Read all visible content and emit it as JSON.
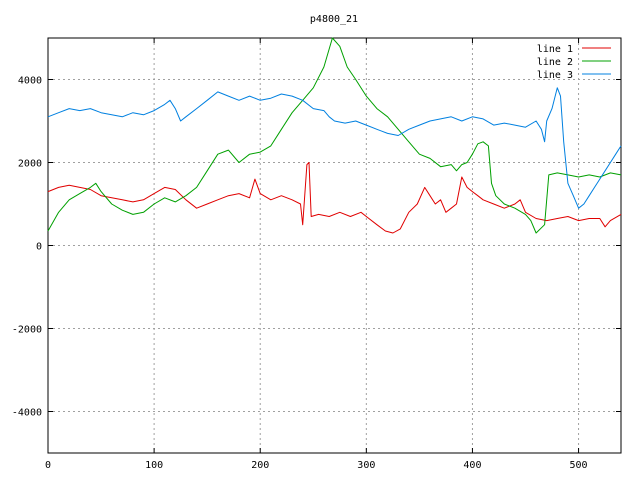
{
  "chart_data": {
    "type": "line",
    "title": "p4800_21",
    "xlabel": "",
    "ylabel": "",
    "xlim": [
      0,
      540
    ],
    "ylim": [
      -5000,
      5000
    ],
    "xticks": [
      0,
      100,
      200,
      300,
      400,
      500
    ],
    "yticks": [
      -4000,
      -2000,
      0,
      2000,
      4000
    ],
    "grid": true,
    "legend_position": "top-right",
    "series": [
      {
        "name": "line 1",
        "color": "#e00000",
        "points": [
          [
            0,
            1300
          ],
          [
            10,
            1400
          ],
          [
            20,
            1450
          ],
          [
            30,
            1400
          ],
          [
            40,
            1350
          ],
          [
            50,
            1200
          ],
          [
            60,
            1150
          ],
          [
            70,
            1100
          ],
          [
            80,
            1050
          ],
          [
            90,
            1100
          ],
          [
            100,
            1250
          ],
          [
            110,
            1400
          ],
          [
            120,
            1350
          ],
          [
            130,
            1100
          ],
          [
            140,
            900
          ],
          [
            150,
            1000
          ],
          [
            160,
            1100
          ],
          [
            170,
            1200
          ],
          [
            180,
            1250
          ],
          [
            190,
            1150
          ],
          [
            195,
            1600
          ],
          [
            200,
            1250
          ],
          [
            210,
            1100
          ],
          [
            220,
            1200
          ],
          [
            230,
            1100
          ],
          [
            238,
            1000
          ],
          [
            240,
            500
          ],
          [
            244,
            1950
          ],
          [
            246,
            2000
          ],
          [
            248,
            700
          ],
          [
            255,
            750
          ],
          [
            265,
            700
          ],
          [
            275,
            800
          ],
          [
            285,
            700
          ],
          [
            295,
            800
          ],
          [
            300,
            700
          ],
          [
            310,
            500
          ],
          [
            318,
            350
          ],
          [
            325,
            300
          ],
          [
            332,
            400
          ],
          [
            340,
            800
          ],
          [
            348,
            1000
          ],
          [
            355,
            1400
          ],
          [
            360,
            1200
          ],
          [
            365,
            1000
          ],
          [
            370,
            1100
          ],
          [
            375,
            800
          ],
          [
            380,
            900
          ],
          [
            385,
            1000
          ],
          [
            390,
            1650
          ],
          [
            395,
            1400
          ],
          [
            400,
            1300
          ],
          [
            405,
            1200
          ],
          [
            410,
            1100
          ],
          [
            420,
            1000
          ],
          [
            430,
            900
          ],
          [
            440,
            1000
          ],
          [
            445,
            1100
          ],
          [
            450,
            800
          ],
          [
            460,
            650
          ],
          [
            470,
            600
          ],
          [
            480,
            650
          ],
          [
            490,
            700
          ],
          [
            500,
            600
          ],
          [
            510,
            650
          ],
          [
            520,
            650
          ],
          [
            525,
            450
          ],
          [
            530,
            600
          ],
          [
            540,
            750
          ]
        ]
      },
      {
        "name": "line 2",
        "color": "#00a000",
        "points": [
          [
            0,
            350
          ],
          [
            10,
            800
          ],
          [
            20,
            1100
          ],
          [
            30,
            1250
          ],
          [
            40,
            1400
          ],
          [
            45,
            1500
          ],
          [
            50,
            1300
          ],
          [
            60,
            1000
          ],
          [
            70,
            850
          ],
          [
            80,
            750
          ],
          [
            90,
            800
          ],
          [
            100,
            1000
          ],
          [
            110,
            1150
          ],
          [
            120,
            1050
          ],
          [
            130,
            1200
          ],
          [
            140,
            1400
          ],
          [
            150,
            1800
          ],
          [
            160,
            2200
          ],
          [
            170,
            2300
          ],
          [
            180,
            2000
          ],
          [
            190,
            2200
          ],
          [
            200,
            2250
          ],
          [
            210,
            2400
          ],
          [
            220,
            2800
          ],
          [
            230,
            3200
          ],
          [
            240,
            3500
          ],
          [
            250,
            3800
          ],
          [
            260,
            4300
          ],
          [
            268,
            5000
          ],
          [
            275,
            4800
          ],
          [
            282,
            4300
          ],
          [
            290,
            4000
          ],
          [
            300,
            3600
          ],
          [
            310,
            3300
          ],
          [
            320,
            3100
          ],
          [
            330,
            2800
          ],
          [
            340,
            2500
          ],
          [
            350,
            2200
          ],
          [
            360,
            2100
          ],
          [
            370,
            1900
          ],
          [
            380,
            1950
          ],
          [
            385,
            1800
          ],
          [
            390,
            1950
          ],
          [
            395,
            2000
          ],
          [
            400,
            2200
          ],
          [
            405,
            2450
          ],
          [
            410,
            2500
          ],
          [
            415,
            2400
          ],
          [
            418,
            1500
          ],
          [
            422,
            1200
          ],
          [
            430,
            1000
          ],
          [
            440,
            900
          ],
          [
            450,
            750
          ],
          [
            455,
            600
          ],
          [
            460,
            300
          ],
          [
            468,
            500
          ],
          [
            470,
            1100
          ],
          [
            472,
            1700
          ],
          [
            480,
            1750
          ],
          [
            490,
            1700
          ],
          [
            500,
            1650
          ],
          [
            510,
            1700
          ],
          [
            520,
            1650
          ],
          [
            530,
            1750
          ],
          [
            540,
            1700
          ]
        ]
      },
      {
        "name": "line 3",
        "color": "#0080e0",
        "points": [
          [
            0,
            3100
          ],
          [
            10,
            3200
          ],
          [
            20,
            3300
          ],
          [
            30,
            3250
          ],
          [
            40,
            3300
          ],
          [
            50,
            3200
          ],
          [
            60,
            3150
          ],
          [
            70,
            3100
          ],
          [
            80,
            3200
          ],
          [
            90,
            3150
          ],
          [
            100,
            3250
          ],
          [
            110,
            3400
          ],
          [
            115,
            3500
          ],
          [
            120,
            3300
          ],
          [
            125,
            3000
          ],
          [
            130,
            3100
          ],
          [
            140,
            3300
          ],
          [
            150,
            3500
          ],
          [
            160,
            3700
          ],
          [
            170,
            3600
          ],
          [
            180,
            3500
          ],
          [
            190,
            3600
          ],
          [
            200,
            3500
          ],
          [
            210,
            3550
          ],
          [
            220,
            3650
          ],
          [
            230,
            3600
          ],
          [
            240,
            3500
          ],
          [
            250,
            3300
          ],
          [
            260,
            3250
          ],
          [
            265,
            3100
          ],
          [
            270,
            3000
          ],
          [
            280,
            2950
          ],
          [
            290,
            3000
          ],
          [
            300,
            2900
          ],
          [
            310,
            2800
          ],
          [
            320,
            2700
          ],
          [
            330,
            2650
          ],
          [
            340,
            2800
          ],
          [
            350,
            2900
          ],
          [
            360,
            3000
          ],
          [
            370,
            3050
          ],
          [
            380,
            3100
          ],
          [
            390,
            3000
          ],
          [
            400,
            3100
          ],
          [
            410,
            3050
          ],
          [
            420,
            2900
          ],
          [
            430,
            2950
          ],
          [
            440,
            2900
          ],
          [
            450,
            2850
          ],
          [
            460,
            3000
          ],
          [
            465,
            2800
          ],
          [
            468,
            2500
          ],
          [
            470,
            3000
          ],
          [
            475,
            3300
          ],
          [
            480,
            3800
          ],
          [
            483,
            3600
          ],
          [
            486,
            2500
          ],
          [
            490,
            1500
          ],
          [
            495,
            1200
          ],
          [
            500,
            900
          ],
          [
            505,
            1000
          ],
          [
            510,
            1200
          ],
          [
            515,
            1400
          ],
          [
            520,
            1600
          ],
          [
            525,
            1800
          ],
          [
            530,
            2000
          ],
          [
            535,
            2200
          ],
          [
            540,
            2400
          ]
        ]
      }
    ]
  }
}
